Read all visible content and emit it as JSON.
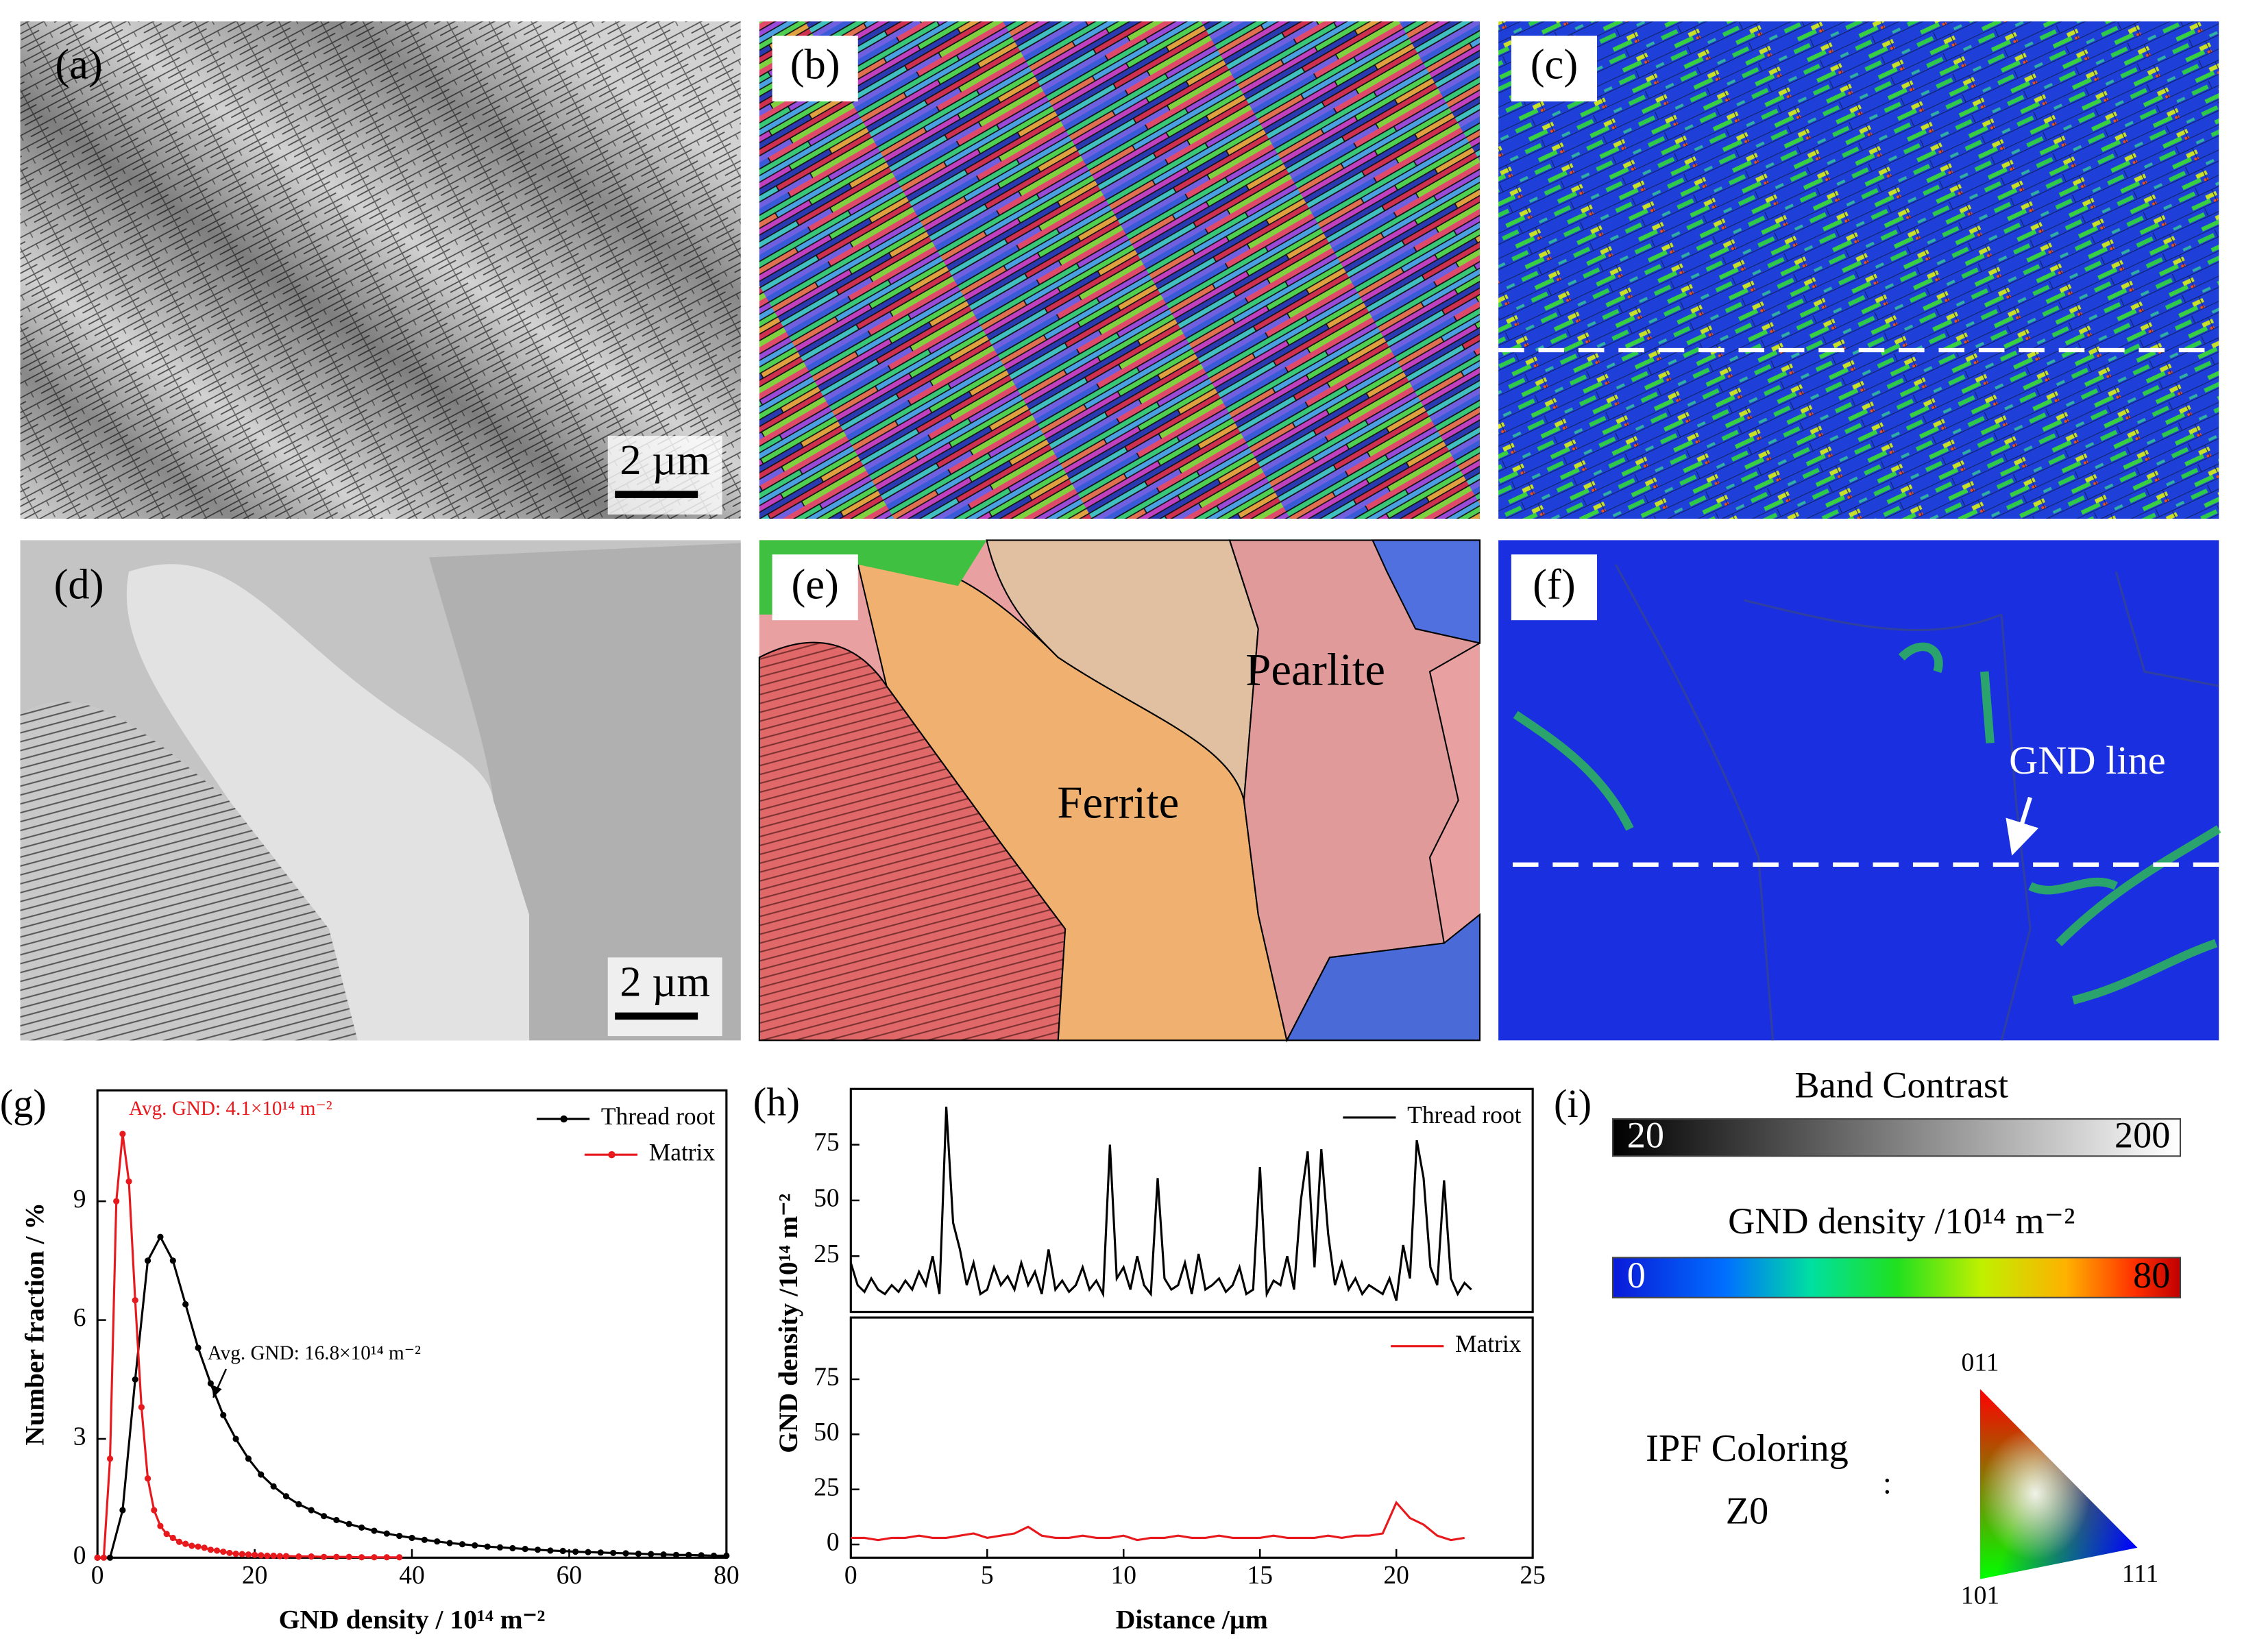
{
  "panels": {
    "a": {
      "label": "(a)",
      "scale_bar": "2 µm"
    },
    "b": {
      "label": "(b)"
    },
    "c": {
      "label": "(c)"
    },
    "d": {
      "label": "(d)",
      "scale_bar": "2 µm"
    },
    "e": {
      "label": "(e)",
      "phases": [
        "Pearlite",
        "Ferrite"
      ]
    },
    "f": {
      "label": "(f)",
      "annotation": "GND line"
    },
    "i": {
      "label": "(i)",
      "band_contrast": {
        "title": "Band Contrast",
        "range": [
          20,
          200
        ]
      },
      "gnd_density": {
        "title": "GND density /10¹⁴ m⁻²",
        "range": [
          0,
          80
        ]
      },
      "ipf": {
        "title": "IPF Coloring",
        "subtitle": "Z0",
        "separator": ":",
        "corners": [
          "011",
          "101",
          "111"
        ]
      }
    }
  },
  "chart_data": [
    {
      "type": "line",
      "panel_label": "(g)",
      "xlabel": "GND density / 10¹⁴ m⁻²",
      "ylabel": "Number fraction / %",
      "xlim": [
        0,
        80
      ],
      "xticks": [
        0,
        20,
        40,
        60,
        80
      ],
      "ylim": [
        0,
        11.8
      ],
      "yticks": [
        0,
        3,
        6,
        9
      ],
      "markers": true,
      "legend": "upper right",
      "annotations": [
        {
          "text": "Avg. GND: 4.1×10¹⁴ m⁻²",
          "color": "#e8191c"
        },
        {
          "text": "Avg. GND: 16.8×10¹⁴ m⁻²",
          "color": "#000000"
        }
      ],
      "series": [
        {
          "name": "Thread root",
          "color": "#000000",
          "x": [
            0,
            1.6,
            3.2,
            4.8,
            6.4,
            8,
            9.6,
            11.2,
            12.8,
            14.4,
            16,
            17.6,
            19.2,
            20.8,
            22.4,
            24,
            25.6,
            27.2,
            28.8,
            30.4,
            32,
            33.6,
            35.2,
            36.8,
            38.4,
            40,
            41.6,
            43.2,
            44.8,
            46.4,
            48,
            49.6,
            51.2,
            52.8,
            54.4,
            56,
            57.6,
            59.2,
            60.8,
            62.4,
            64,
            65.6,
            67.2,
            68.8,
            70.4,
            72,
            73.6,
            75.2,
            76.8,
            78.4,
            80
          ],
          "values": [
            0,
            0,
            1.2,
            4.5,
            7.5,
            8.1,
            7.5,
            6.4,
            5.3,
            4.4,
            3.6,
            3.0,
            2.5,
            2.1,
            1.8,
            1.55,
            1.35,
            1.2,
            1.05,
            0.95,
            0.85,
            0.76,
            0.68,
            0.61,
            0.55,
            0.5,
            0.45,
            0.41,
            0.37,
            0.34,
            0.31,
            0.28,
            0.26,
            0.24,
            0.22,
            0.2,
            0.18,
            0.17,
            0.15,
            0.14,
            0.13,
            0.12,
            0.11,
            0.1,
            0.09,
            0.08,
            0.07,
            0.07,
            0.06,
            0.05,
            0.05
          ]
        },
        {
          "name": "Matrix",
          "color": "#e8191c",
          "x": [
            0,
            0.8,
            1.6,
            2.4,
            3.2,
            4,
            4.8,
            5.6,
            6.4,
            7.2,
            8,
            8.8,
            9.6,
            10.4,
            11.2,
            12,
            12.8,
            13.6,
            14.4,
            15.2,
            16,
            16.8,
            17.6,
            18.4,
            19.2,
            20,
            20.8,
            21.6,
            22.4,
            23.2,
            24,
            25.6,
            27.2,
            28.8,
            30.4,
            32,
            33.6,
            35.2,
            36.8,
            38.4
          ],
          "values": [
            0,
            0,
            2.5,
            9.0,
            10.7,
            9.5,
            6.5,
            3.8,
            2.0,
            1.2,
            0.8,
            0.6,
            0.5,
            0.4,
            0.35,
            0.3,
            0.28,
            0.25,
            0.2,
            0.18,
            0.15,
            0.12,
            0.1,
            0.09,
            0.08,
            0.07,
            0.06,
            0.05,
            0.05,
            0.04,
            0.04,
            0.03,
            0.03,
            0.02,
            0.02,
            0.02,
            0.01,
            0.01,
            0.01,
            0.01
          ]
        }
      ]
    },
    {
      "type": "line",
      "panel_label": "(h)",
      "ylabel": "GND density /10¹⁴ m⁻²",
      "xlim": [
        0,
        25
      ],
      "ylim": [
        0,
        100
      ],
      "yticks": [
        25,
        50,
        75
      ],
      "legend": "upper right",
      "series": [
        {
          "name": "Thread root",
          "color": "#000000",
          "x": [
            0,
            0.25,
            0.5,
            0.75,
            1,
            1.25,
            1.5,
            1.75,
            2,
            2.25,
            2.5,
            2.75,
            3,
            3.25,
            3.5,
            3.75,
            4,
            4.25,
            4.5,
            4.75,
            5,
            5.25,
            5.5,
            5.75,
            6,
            6.25,
            6.5,
            6.75,
            7,
            7.25,
            7.5,
            7.75,
            8,
            8.25,
            8.5,
            8.75,
            9,
            9.25,
            9.5,
            9.75,
            10,
            10.25,
            10.5,
            10.75,
            11,
            11.25,
            11.5,
            11.75,
            12,
            12.25,
            12.5,
            12.75,
            13,
            13.25,
            13.5,
            13.75,
            14,
            14.25,
            14.5,
            14.75,
            15,
            15.25,
            15.5,
            15.75,
            16,
            16.25,
            16.5,
            16.75,
            17,
            17.25,
            17.5,
            17.75,
            18,
            18.25,
            18.5,
            18.75,
            19,
            19.25,
            19.5,
            19.75,
            20,
            20.25,
            20.5,
            20.75,
            21,
            21.25,
            21.5,
            21.75,
            22,
            22.25,
            22.5,
            22.75
          ],
          "values": [
            22,
            12,
            9,
            15,
            10,
            8,
            12,
            9,
            14,
            10,
            18,
            12,
            25,
            8,
            92,
            40,
            28,
            12,
            22,
            8,
            10,
            20,
            12,
            16,
            10,
            22,
            12,
            18,
            8,
            28,
            10,
            14,
            9,
            12,
            20,
            10,
            14,
            8,
            75,
            15,
            20,
            10,
            25,
            12,
            8,
            60,
            15,
            10,
            12,
            22,
            8,
            26,
            10,
            12,
            15,
            9,
            12,
            20,
            8,
            10,
            65,
            8,
            14,
            12,
            25,
            10,
            50,
            72,
            20,
            73,
            35,
            12,
            22,
            10,
            15,
            8,
            12,
            10,
            8,
            15,
            5,
            30,
            15,
            77,
            60,
            20,
            12,
            59,
            15,
            8,
            13,
            10
          ]
        }
      ]
    },
    {
      "type": "line",
      "xlabel": "Distance /µm",
      "xlim": [
        0,
        25
      ],
      "xticks": [
        0,
        5,
        10,
        15,
        20,
        25
      ],
      "ylim": [
        -6,
        103
      ],
      "yticks": [
        0,
        25,
        50,
        75
      ],
      "legend": "upper right",
      "series": [
        {
          "name": "Matrix",
          "color": "#e8191c",
          "x": [
            0,
            0.5,
            1,
            1.5,
            2,
            2.5,
            3,
            3.5,
            4,
            4.5,
            5,
            5.5,
            6,
            6.5,
            7,
            7.5,
            8,
            8.5,
            9,
            9.5,
            10,
            10.5,
            11,
            11.5,
            12,
            12.5,
            13,
            13.5,
            14,
            14.5,
            15,
            15.5,
            16,
            16.5,
            17,
            17.5,
            18,
            18.5,
            19,
            19.5,
            20,
            20.5,
            21,
            21.5,
            22,
            22.5
          ],
          "values": [
            3,
            3,
            2,
            3,
            3,
            4,
            3,
            3,
            4,
            5,
            3,
            4,
            5,
            8,
            4,
            3,
            3,
            4,
            3,
            3,
            4,
            2,
            3,
            3,
            4,
            3,
            3,
            4,
            3,
            3,
            3,
            4,
            3,
            3,
            3,
            4,
            3,
            4,
            4,
            5,
            19,
            12,
            9,
            4,
            2,
            3
          ]
        }
      ]
    }
  ]
}
